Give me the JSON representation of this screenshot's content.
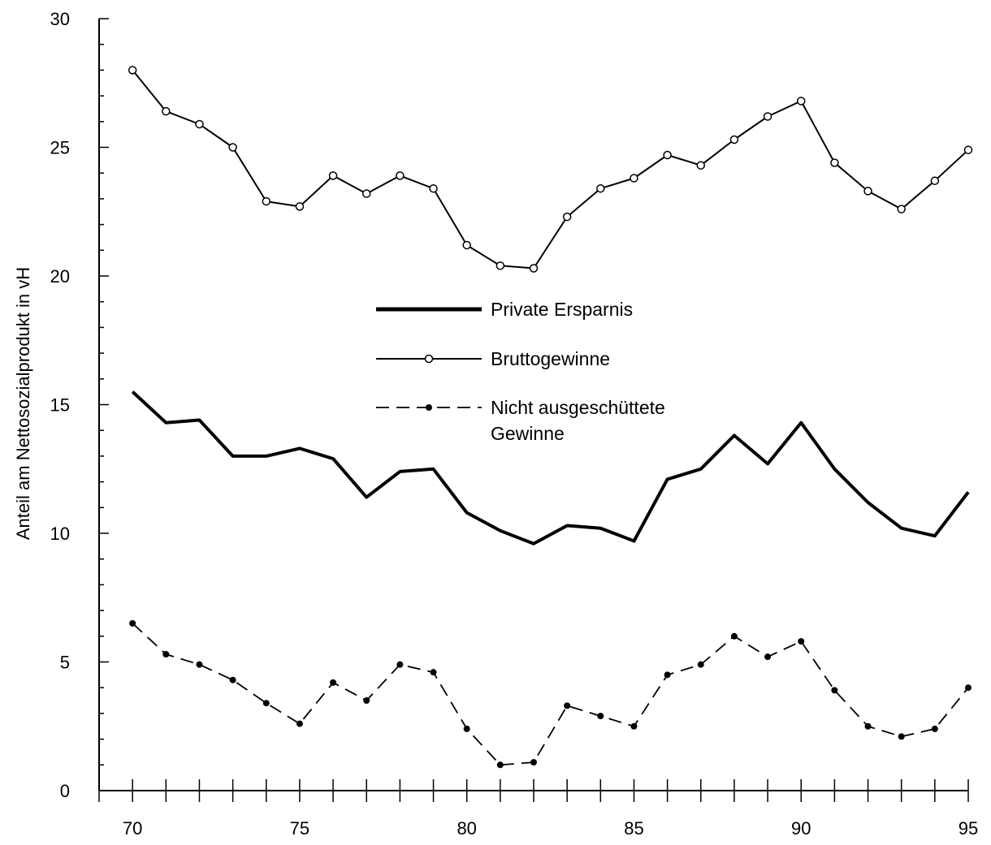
{
  "chart_data": {
    "type": "line",
    "title": "",
    "xlabel": "",
    "ylabel": "Anteil am Nettosozialprodukt in vH",
    "xlim": [
      69,
      95
    ],
    "ylim": [
      0,
      30
    ],
    "x": [
      70,
      71,
      72,
      73,
      74,
      75,
      76,
      77,
      78,
      79,
      80,
      81,
      82,
      83,
      84,
      85,
      86,
      87,
      88,
      89,
      90,
      91,
      92,
      93,
      94,
      95
    ],
    "x_ticks": [
      70,
      75,
      80,
      85,
      90,
      95
    ],
    "y_ticks": [
      0,
      5,
      10,
      15,
      20,
      25,
      30
    ],
    "grid": false,
    "legend_position": "center",
    "series": [
      {
        "name": "Private Ersparnis",
        "style": "thick-solid",
        "color": "#000000",
        "values": [
          15.5,
          14.3,
          14.4,
          13.0,
          13.0,
          13.3,
          12.9,
          11.4,
          12.4,
          12.5,
          10.8,
          10.1,
          9.6,
          10.3,
          10.2,
          9.7,
          12.1,
          12.5,
          13.8,
          12.7,
          14.3,
          12.5,
          11.2,
          10.2,
          9.9,
          11.6
        ]
      },
      {
        "name": "Bruttogewinne",
        "style": "thin-open-circle",
        "color": "#000000",
        "values": [
          28.0,
          26.4,
          25.9,
          25.0,
          22.9,
          22.7,
          23.9,
          23.2,
          23.9,
          23.4,
          21.2,
          20.4,
          20.3,
          22.3,
          23.4,
          23.8,
          24.7,
          24.3,
          25.3,
          26.2,
          26.8,
          24.4,
          23.3,
          22.6,
          23.7,
          24.9
        ]
      },
      {
        "name": "Nicht ausgeschüttete\nGewinne",
        "style": "dashed-filled-dot",
        "color": "#000000",
        "values": [
          6.5,
          5.3,
          4.9,
          4.3,
          3.4,
          2.6,
          4.2,
          3.5,
          4.9,
          4.6,
          2.4,
          1.0,
          1.1,
          3.3,
          2.9,
          2.5,
          4.5,
          4.9,
          6.0,
          5.2,
          5.8,
          3.9,
          2.5,
          2.1,
          2.4,
          4.0
        ]
      }
    ]
  }
}
